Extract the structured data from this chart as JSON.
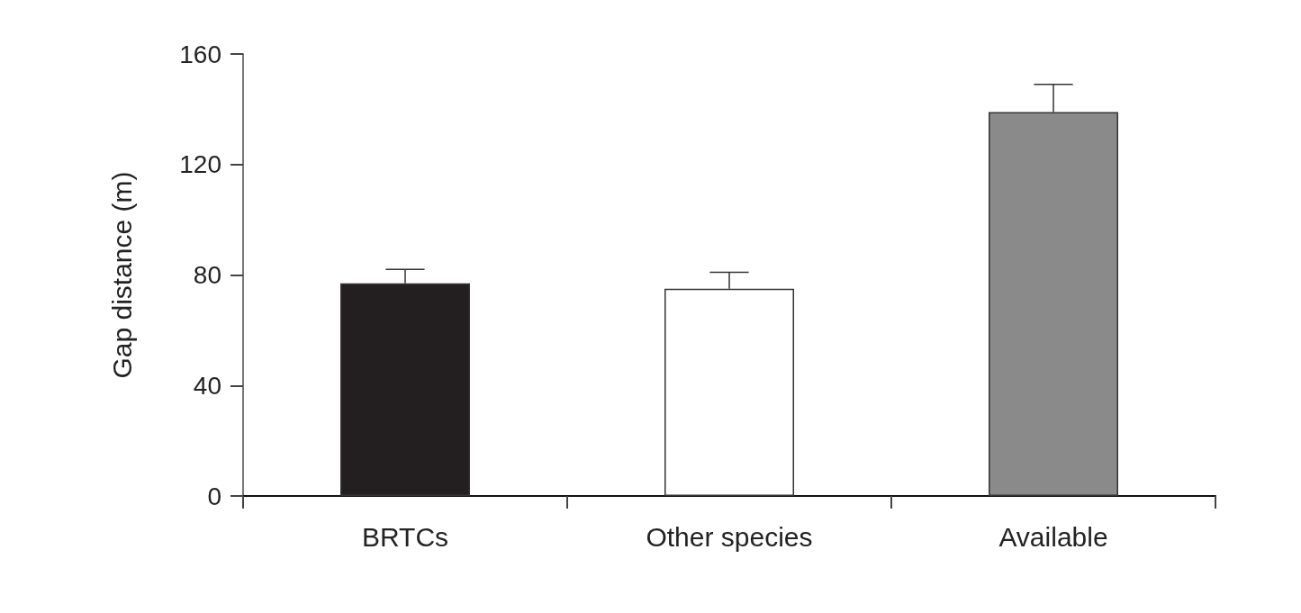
{
  "chart_data": {
    "type": "bar",
    "ylabel": "Gap distance (m)",
    "categories": [
      "BRTCs",
      "Other species",
      "Available"
    ],
    "values": [
      77,
      75,
      139
    ],
    "errors": [
      [
        77,
        82
      ],
      [
        75,
        81
      ],
      [
        139,
        149
      ]
    ],
    "colors": [
      "#231f20",
      "#ffffff",
      "#8a8a8a"
    ],
    "ylim": [
      0,
      160
    ],
    "yticks": [
      0,
      40,
      80,
      120,
      160
    ],
    "grid": false
  }
}
